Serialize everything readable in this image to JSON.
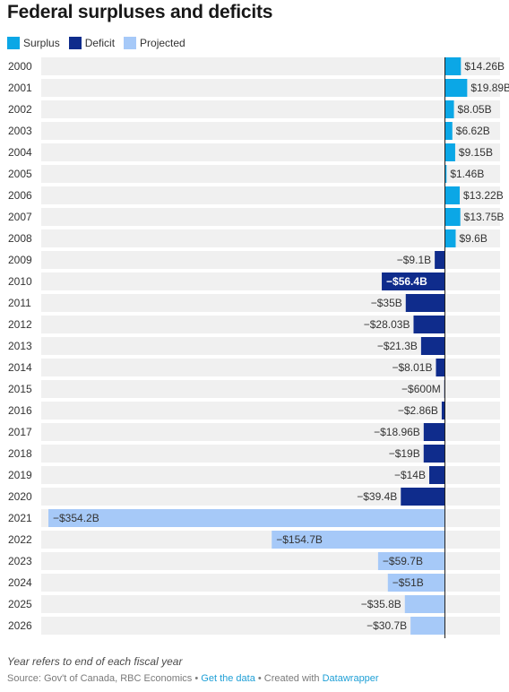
{
  "title": "Federal surpluses and deficits",
  "legend": [
    {
      "label": "Surplus",
      "color": "#0ba7e6"
    },
    {
      "label": "Deficit",
      "color": "#0f2c8c"
    },
    {
      "label": "Projected",
      "color": "#a6c9f8"
    }
  ],
  "chart_data": {
    "type": "bar",
    "orientation": "horizontal",
    "title": "Federal surpluses and deficits",
    "categories": [
      "2000",
      "2001",
      "2002",
      "2003",
      "2004",
      "2005",
      "2006",
      "2007",
      "2008",
      "2009",
      "2010",
      "2011",
      "2012",
      "2013",
      "2014",
      "2015",
      "2016",
      "2017",
      "2018",
      "2019",
      "2020",
      "2021",
      "2022",
      "2023",
      "2024",
      "2025",
      "2026"
    ],
    "values": [
      14.26,
      19.89,
      8.05,
      6.62,
      9.15,
      1.46,
      13.22,
      13.75,
      9.6,
      -9.1,
      -56.4,
      -35,
      -28.03,
      -21.3,
      -8.01,
      -0.6,
      -2.86,
      -18.96,
      -19,
      -14,
      -39.4,
      -354.2,
      -154.7,
      -59.7,
      -51,
      -35.8,
      -30.7
    ],
    "labels": [
      "$14.26B",
      "$19.89B",
      "$8.05B",
      "$6.62B",
      "$9.15B",
      "$1.46B",
      "$13.22B",
      "$13.75B",
      "$9.6B",
      "−$9.1B",
      "−$56.4B",
      "−$35B",
      "−$28.03B",
      "−$21.3B",
      "−$8.01B",
      "−$600M",
      "−$2.86B",
      "−$18.96B",
      "−$19B",
      "−$14B",
      "−$39.4B",
      "−$354.2B",
      "−$154.7B",
      "−$59.7B",
      "−$51B",
      "−$35.8B",
      "−$30.7B"
    ],
    "kind": [
      "Surplus",
      "Surplus",
      "Surplus",
      "Surplus",
      "Surplus",
      "Surplus",
      "Surplus",
      "Surplus",
      "Surplus",
      "Deficit",
      "Deficit",
      "Deficit",
      "Deficit",
      "Deficit",
      "Deficit",
      "Deficit",
      "Deficit",
      "Deficit",
      "Deficit",
      "Deficit",
      "Deficit",
      "Projected",
      "Projected",
      "Projected",
      "Projected",
      "Projected",
      "Projected"
    ],
    "unit": "billions of dollars",
    "xlim": [
      -354.2,
      19.89
    ],
    "grid": false,
    "legend_position": "top-left",
    "colors": {
      "Surplus": "#0ba7e6",
      "Deficit": "#0f2c8c",
      "Projected": "#a6c9f8",
      "row_background": "#f0f0f0",
      "zero_line": "#222222"
    }
  },
  "footer": {
    "note": "Year refers to end of each fiscal year",
    "source_prefix": "Source: Gov't of Canada, RBC Economics • ",
    "get_data": "Get the data",
    "created_prefix": " • Created with ",
    "datawrapper": "Datawrapper"
  }
}
